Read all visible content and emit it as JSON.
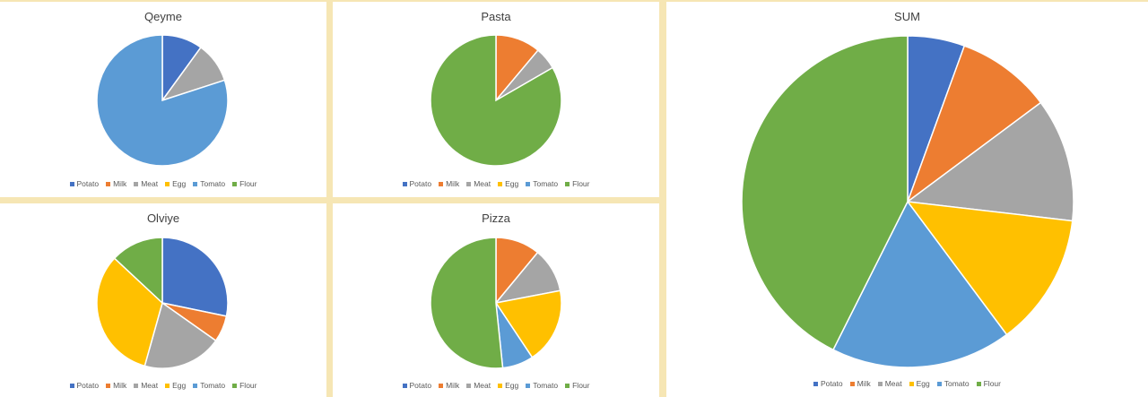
{
  "colors": {
    "Potato": "#4472c4",
    "Milk": "#ed7d31",
    "Meat": "#a5a5a5",
    "Egg": "#ffc000",
    "Tomato": "#5b9bd5",
    "Flour": "#70ad47"
  },
  "chart_data": [
    {
      "id": "qeyme",
      "type": "pie",
      "title": "Qeyme",
      "categories": [
        "Potato",
        "Milk",
        "Meat",
        "Egg",
        "Tomato",
        "Flour"
      ],
      "values": [
        1,
        0,
        1,
        0,
        8,
        0
      ],
      "legend": "bottom"
    },
    {
      "id": "pasta",
      "type": "pie",
      "title": "Pasta",
      "categories": [
        "Potato",
        "Milk",
        "Meat",
        "Egg",
        "Tomato",
        "Flour"
      ],
      "values": [
        0,
        2,
        1,
        0,
        0,
        15
      ],
      "legend": "bottom"
    },
    {
      "id": "olviye",
      "type": "pie",
      "title": "Olviye",
      "categories": [
        "Potato",
        "Milk",
        "Meat",
        "Egg",
        "Tomato",
        "Flour"
      ],
      "values": [
        26,
        6,
        18,
        30,
        0,
        12
      ],
      "legend": "bottom"
    },
    {
      "id": "pizza",
      "type": "pie",
      "title": "Pizza",
      "categories": [
        "Potato",
        "Milk",
        "Meat",
        "Egg",
        "Tomato",
        "Flour"
      ],
      "values": [
        0,
        10,
        10,
        17,
        7,
        47
      ],
      "legend": "bottom"
    },
    {
      "id": "sum",
      "type": "pie",
      "title": "SUM",
      "categories": [
        "Potato",
        "Milk",
        "Meat",
        "Egg",
        "Tomato",
        "Flour"
      ],
      "values": [
        6,
        10,
        13,
        14,
        19,
        46
      ],
      "legend": "bottom"
    }
  ]
}
